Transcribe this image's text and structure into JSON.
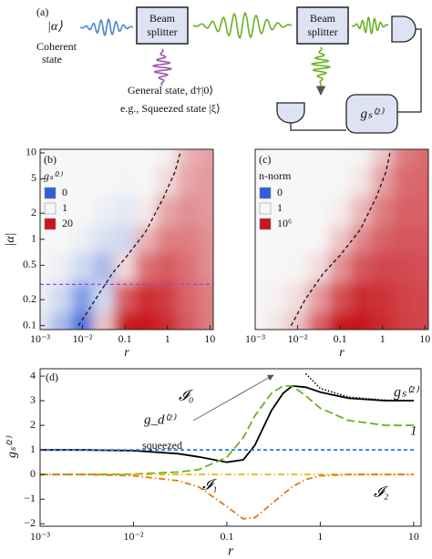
{
  "diagram": {
    "label": "(a)",
    "input": "|α⟩",
    "input_caption": [
      "Coherent",
      "state"
    ],
    "splitters": [
      [
        "Beam",
        "splitter"
      ],
      [
        "Beam",
        "splitter"
      ]
    ],
    "general": "General state, d†|0⟩",
    "squeezed": "e.g., Squeezed state |ξ⟩",
    "detector_box": "gₛ⁽²⁾"
  },
  "chart_data": [
    {
      "type": "heatmap",
      "label": "(b)",
      "xlabel": "r",
      "ylabel": "|α|",
      "xscale": "log",
      "yscale": "log",
      "xlim": [
        0.001,
        12
      ],
      "ylim": [
        0.09,
        11
      ],
      "xticks": [
        {
          "value": 0.001,
          "label": "10⁻³"
        },
        {
          "value": 0.01,
          "label": "10⁻²"
        },
        0.1,
        1,
        10
      ],
      "yticks": [
        0.1,
        0.2,
        0.5,
        1,
        2,
        5,
        10
      ],
      "x": [
        0.001,
        0.003,
        0.01,
        0.03,
        0.1,
        0.3,
        1,
        3,
        10
      ],
      "y": [
        0.1,
        0.2,
        0.5,
        1,
        2,
        5,
        10
      ],
      "z": [
        [
          0.9,
          0.6,
          0.1,
          2,
          20,
          20,
          15,
          8,
          5
        ],
        [
          0.95,
          0.8,
          0.4,
          0.8,
          8,
          15,
          12,
          7,
          5
        ],
        [
          1,
          0.95,
          0.8,
          0.6,
          1.5,
          6,
          8,
          6,
          4
        ],
        [
          1,
          1,
          0.95,
          0.85,
          0.8,
          2.5,
          5,
          5,
          4
        ],
        [
          1,
          1,
          1,
          0.95,
          0.9,
          1.2,
          3,
          4,
          3.5
        ],
        [
          1,
          1,
          1,
          1,
          0.98,
          1,
          1.5,
          3,
          3.5
        ],
        [
          1,
          1,
          1,
          1,
          1,
          1,
          1.1,
          2.5,
          3.2
        ]
      ],
      "legend": {
        "title": "gₛ⁽²⁾",
        "items": [
          {
            "value": 0,
            "color": "#2f5fd8"
          },
          {
            "value": 1,
            "color": "#f7f7f7"
          },
          {
            "value": 20,
            "color": "#c8161e"
          }
        ]
      },
      "curves": [
        {
          "x": [
            0.008,
            0.02,
            0.05,
            0.1,
            0.3,
            0.8,
            1.5,
            2
          ],
          "y": [
            0.1,
            0.2,
            0.4,
            0.6,
            1.2,
            3,
            6,
            10
          ],
          "color": "#111111",
          "style": "dashed"
        },
        {
          "x": [
            0.001,
            12
          ],
          "y": [
            0.3,
            0.3
          ],
          "color": "#a040e0",
          "style": "dashed"
        }
      ]
    },
    {
      "type": "heatmap",
      "label": "(c)",
      "xlabel": "r",
      "xscale": "log",
      "yscale": "log",
      "xlim": [
        0.001,
        12
      ],
      "ylim": [
        0.09,
        11
      ],
      "xticks": [
        {
          "value": 0.001,
          "label": "10⁻³"
        },
        {
          "value": 0.01,
          "label": "10⁻²"
        },
        0.1,
        1,
        10
      ],
      "x": [
        0.001,
        0.003,
        0.01,
        0.03,
        0.1,
        0.3,
        1,
        3,
        10
      ],
      "y": [
        0.1,
        0.2,
        0.5,
        1,
        2,
        5,
        10
      ],
      "z": [
        [
          1,
          3,
          30,
          10000,
          1000000,
          1000000,
          300000,
          100000,
          50000
        ],
        [
          1,
          1.5,
          5,
          300,
          30000,
          300000,
          200000,
          80000,
          50000
        ],
        [
          1,
          1,
          1.2,
          5,
          500,
          20000,
          50000,
          40000,
          30000
        ],
        [
          1,
          1,
          1,
          1.1,
          20,
          1000,
          10000,
          20000,
          20000
        ],
        [
          1,
          1,
          1,
          1,
          2,
          50,
          2000,
          10000,
          10000
        ],
        [
          1,
          1,
          1,
          1,
          1,
          3,
          200,
          5000,
          8000
        ],
        [
          1,
          1,
          1,
          1,
          1,
          1.2,
          20,
          2000,
          5000
        ]
      ],
      "legend": {
        "title": "n-norm",
        "items": [
          {
            "value": 0,
            "color": "#2f5fd8"
          },
          {
            "value": 1,
            "color": "#f7f7f7"
          },
          {
            "value": 1000000,
            "label": "10⁶",
            "color": "#c8161e"
          }
        ]
      },
      "curves": [
        {
          "x": [
            0.007,
            0.015,
            0.04,
            0.1,
            0.3,
            0.7,
            1.2,
            1.5
          ],
          "y": [
            0.1,
            0.2,
            0.4,
            0.65,
            1.3,
            3,
            6,
            10
          ],
          "color": "#111111",
          "style": "dashed"
        }
      ]
    },
    {
      "type": "line",
      "label": "(d)",
      "xlabel": "r",
      "ylabel": "gₛ⁽²⁾",
      "xscale": "log",
      "xlim": [
        0.001,
        12
      ],
      "ylim": [
        -2.1,
        4.3
      ],
      "xticks": [
        {
          "value": 0.001,
          "label": "10⁻³"
        },
        {
          "value": 0.01,
          "label": "10⁻²"
        },
        0.1,
        1,
        10
      ],
      "yticks": [
        {
          "value": -2,
          "label": "−2"
        },
        {
          "value": -1,
          "label": "−1"
        },
        0,
        1,
        2,
        3,
        4
      ],
      "x": [
        0.001,
        0.003,
        0.01,
        0.03,
        0.05,
        0.1,
        0.15,
        0.2,
        0.3,
        0.4,
        0.5,
        0.7,
        1,
        2,
        5,
        10
      ],
      "series": [
        {
          "name": "gₛ⁽²⁾",
          "color": "#000000",
          "style": "solid",
          "values": [
            1,
            1,
            0.97,
            0.85,
            0.72,
            0.5,
            0.6,
            1.2,
            2.6,
            3.3,
            3.6,
            3.55,
            3.35,
            3.1,
            3.0,
            3.0
          ]
        },
        {
          "name": "𝓘₀",
          "color": "#6ab023",
          "style": "longdash",
          "values": [
            0,
            0,
            0.02,
            0.1,
            0.2,
            0.7,
            1.5,
            2.4,
            3.3,
            3.6,
            3.6,
            3.2,
            2.7,
            2.2,
            2.0,
            2.0
          ]
        },
        {
          "name": "1",
          "color": "#2b7bd8",
          "style": "dashed",
          "values": [
            1,
            1,
            1,
            1,
            1,
            1,
            1,
            1,
            1,
            1,
            1,
            1,
            1,
            1,
            1,
            1
          ]
        },
        {
          "name": "𝓘₁",
          "color": "#e3bc12",
          "style": "dashdot",
          "values": [
            0,
            0,
            0,
            0,
            0,
            0,
            0,
            0,
            0,
            0,
            0,
            0,
            0,
            0,
            0,
            0
          ]
        },
        {
          "name": "𝓘₂",
          "color": "#e07b10",
          "style": "dashdot",
          "values": [
            0,
            0,
            -0.05,
            -0.25,
            -0.5,
            -1.3,
            -1.8,
            -1.75,
            -1.2,
            -0.8,
            -0.5,
            -0.2,
            -0.05,
            0,
            0,
            0
          ]
        },
        {
          "name": "g_d⁽²⁾",
          "color": "#000000",
          "style": "dotted",
          "values": [
            null,
            null,
            null,
            null,
            null,
            null,
            null,
            null,
            null,
            null,
            null,
            4.1,
            3.5,
            3.15,
            3.02,
            3.0
          ]
        }
      ],
      "annotations": [
        "squeezed"
      ]
    }
  ]
}
